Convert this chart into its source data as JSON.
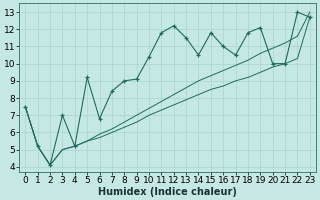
{
  "xlabel": "Humidex (Indice chaleur)",
  "bg_color": "#c5e8e4",
  "grid_color": "#a8d5d0",
  "line_color": "#1e6b60",
  "xlim": [
    -0.5,
    23.5
  ],
  "ylim": [
    3.7,
    13.5
  ],
  "xticks": [
    0,
    1,
    2,
    3,
    4,
    5,
    6,
    7,
    8,
    9,
    10,
    11,
    12,
    13,
    14,
    15,
    16,
    17,
    18,
    19,
    20,
    21,
    22,
    23
  ],
  "yticks": [
    4,
    5,
    6,
    7,
    8,
    9,
    10,
    11,
    12,
    13
  ],
  "x_data": [
    0,
    1,
    2,
    3,
    4,
    5,
    6,
    7,
    8,
    9,
    10,
    11,
    12,
    13,
    14,
    15,
    16,
    17,
    18,
    19,
    20,
    21,
    22,
    23
  ],
  "y_main": [
    7.5,
    5.2,
    4.1,
    7.0,
    5.2,
    9.2,
    6.8,
    8.4,
    9.0,
    9.1,
    10.4,
    11.8,
    12.2,
    11.5,
    10.5,
    11.8,
    11.0,
    10.5,
    11.8,
    12.1,
    10.0,
    10.0,
    13.0,
    12.7
  ],
  "y_lower": [
    7.5,
    5.2,
    4.1,
    5.0,
    5.2,
    5.5,
    5.7,
    6.0,
    6.3,
    6.6,
    7.0,
    7.3,
    7.6,
    7.9,
    8.2,
    8.5,
    8.7,
    9.0,
    9.2,
    9.5,
    9.8,
    10.0,
    10.3,
    12.7
  ],
  "y_upper": [
    7.5,
    5.2,
    4.1,
    5.0,
    5.2,
    5.5,
    5.9,
    6.2,
    6.6,
    7.0,
    7.4,
    7.8,
    8.2,
    8.6,
    9.0,
    9.3,
    9.6,
    9.9,
    10.2,
    10.6,
    10.9,
    11.2,
    11.6,
    13.0
  ],
  "xlabel_fontsize": 7,
  "tick_fontsize": 6.5,
  "lw_main": 0.8,
  "lw_env": 0.7,
  "marker_size": 3.5,
  "marker_lw": 0.9
}
